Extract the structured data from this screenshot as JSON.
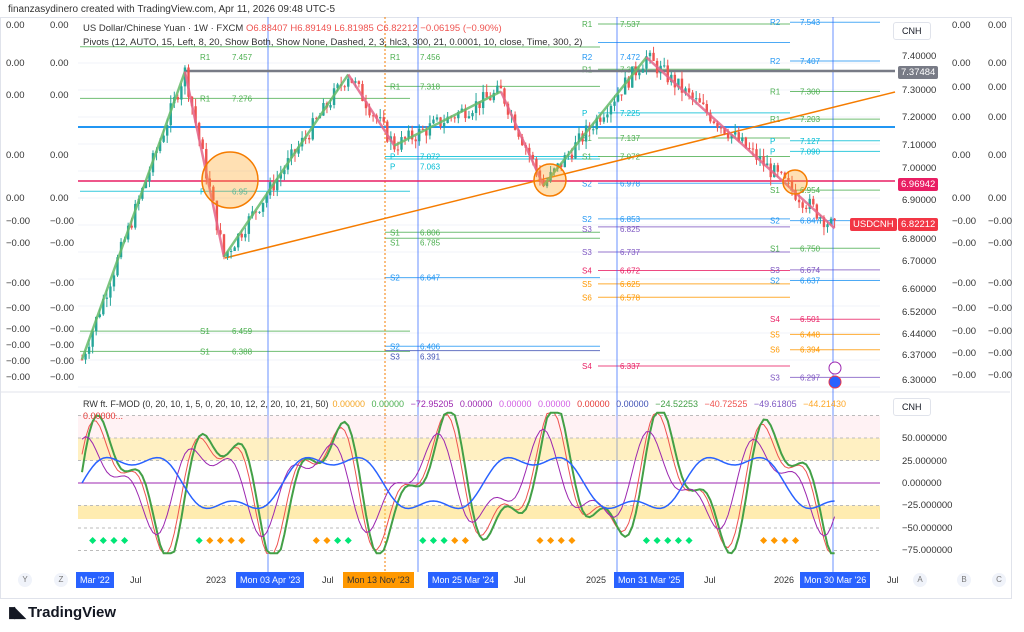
{
  "credit": "finanzasydinero created with TradingView.com, Apr 11, 2026 09:48 UTC-5",
  "symbol": {
    "name": "US Dollar/Chinese Yuan · 1W · FXCM",
    "open": "O6.88407",
    "high": "H6.89149",
    "low": "L6.81985",
    "close": "C6.82212",
    "change": "−0.06195 (−0.90%)"
  },
  "pivots_legend": "Pivots (12, AUTO, 15, Left, 8, 20, Show Both, Show None, Dashed, 2, 3, hlc3, 300, 21, 0.0001, 10, close, Time, 300, 2)",
  "indicator": {
    "name": "RW ft. F-MOD (0, 20, 10, 1, 5, 0, 20, 10, 12, 2, 20, 10, 21, 50)",
    "values": [
      {
        "v": "0.00000",
        "c": "#f5a623"
      },
      {
        "v": "0.00000",
        "c": "#4caf50"
      },
      {
        "v": "−72.95205",
        "c": "#9c27b0"
      },
      {
        "v": "0.00000",
        "c": "#9c27b0"
      },
      {
        "v": "0.00000",
        "c": "#d05ce3"
      },
      {
        "v": "0.00000",
        "c": "#d05ce3"
      },
      {
        "v": "0.00000",
        "c": "#e53935"
      },
      {
        "v": "0.00000",
        "c": "#3f51b5"
      },
      {
        "v": "−24.52253",
        "c": "#43a047"
      },
      {
        "v": "−40.72525",
        "c": "#ef5350"
      },
      {
        "v": "−49.61805",
        "c": "#7e57c2"
      },
      {
        "v": "−44.21430",
        "c": "#ffa726"
      },
      {
        "v": "0.00000...",
        "c": "#e53935"
      }
    ],
    "axis": [
      "50.000000",
      "25.000000",
      "0.000000",
      "−25.000000",
      "−50.000000",
      "−75.000000"
    ],
    "currency": "CNH"
  },
  "price_axis": {
    "currency": "CNH",
    "ticks": [
      "7.40000",
      "7.30000",
      "7.20000",
      "7.10000",
      "7.00000",
      "6.90000",
      "6.80000",
      "6.70000",
      "6.60000",
      "6.52000",
      "6.44000",
      "6.37000",
      "6.30000"
    ],
    "level_badge": "7.37484",
    "pink_badge": "6.96942",
    "symbol_badge": "USDCNH",
    "last_price": "6.82212"
  },
  "left_scale": {
    "col1": [
      "0.00",
      "0.00",
      "0.00",
      "0.00",
      "0.00",
      "−0.00",
      "−0.00",
      "−0.00",
      "−0.00",
      "−0.00",
      "−0.00",
      "−0.00",
      "−0.00"
    ],
    "col2": [
      "0.00",
      "0.00",
      "0.00",
      "0.00",
      "0.00",
      "−0.00",
      "−0.00",
      "−0.00",
      "−0.00",
      "−0.00",
      "−0.00",
      "−0.00",
      "−0.00"
    ]
  },
  "right_scale": {
    "col1": [
      "0.00",
      "0.00",
      "0.00",
      "0.00",
      "0.00",
      "0.00",
      "−0.00",
      "−0.00",
      "−0.00",
      "−0.00",
      "−0.00",
      "−0.00",
      "−0.00"
    ],
    "col2": [
      "0.00",
      "0.00",
      "0.00",
      "0.00",
      "0.00",
      "0.00",
      "−0.00",
      "−0.00",
      "−0.00",
      "−0.00",
      "−0.00",
      "−0.00",
      "−0.00"
    ]
  },
  "pivots": [
    {
      "g": 1,
      "l": "R1",
      "v": "7.457",
      "p": 7.457,
      "c": "#4caf50"
    },
    {
      "g": 1,
      "l": "R1",
      "v": "7.276",
      "p": 7.276,
      "c": "#4caf50"
    },
    {
      "g": 1,
      "l": "P",
      "v": "6.95",
      "p": 6.95,
      "c": "#00bcd4"
    },
    {
      "g": 1,
      "l": "S1",
      "v": "6.459",
      "p": 6.459,
      "c": "#4caf50"
    },
    {
      "g": 1,
      "l": "S1",
      "v": "6.388",
      "p": 6.388,
      "c": "#4caf50"
    },
    {
      "g": 2,
      "l": "R1",
      "v": "7.456",
      "p": 7.456,
      "c": "#4caf50"
    },
    {
      "g": 2,
      "l": "R1",
      "v": "7.318",
      "p": 7.318,
      "c": "#4caf50"
    },
    {
      "g": 2,
      "l": "P",
      "v": "7.072",
      "p": 7.072,
      "c": "#00bcd4"
    },
    {
      "g": 2,
      "l": "P",
      "v": "7.063",
      "p": 7.063,
      "c": "#00bcd4"
    },
    {
      "g": 2,
      "l": "S1",
      "v": "6.806",
      "p": 6.806,
      "c": "#4caf50"
    },
    {
      "g": 2,
      "l": "S1",
      "v": "6.785",
      "p": 6.785,
      "c": "#4caf50"
    },
    {
      "g": 2,
      "l": "S2",
      "v": "6.647",
      "p": 6.647,
      "c": "#2196f3"
    },
    {
      "g": 2,
      "l": "S2",
      "v": "6.406",
      "p": 6.406,
      "c": "#2196f3"
    },
    {
      "g": 2,
      "l": "S3",
      "v": "6.391",
      "p": 6.391,
      "c": "#3f51b5"
    },
    {
      "g": 3,
      "l": "R1",
      "v": "7.537",
      "p": 7.537,
      "c": "#4caf50"
    },
    {
      "g": 3,
      "l": "R2",
      "v": "7.472",
      "p": 7.472,
      "c": "#2196f3"
    },
    {
      "g": 3,
      "l": "R1",
      "v": "7.378",
      "p": 7.378,
      "c": "#4caf50"
    },
    {
      "g": 3,
      "l": "P",
      "v": "7.225",
      "p": 7.225,
      "c": "#00bcd4"
    },
    {
      "g": 3,
      "l": "S1",
      "v": "7.137",
      "p": 7.137,
      "c": "#4caf50"
    },
    {
      "g": 3,
      "l": "S1",
      "v": "7.072",
      "p": 7.072,
      "c": "#4caf50"
    },
    {
      "g": 3,
      "l": "S2",
      "v": "6.978",
      "p": 6.978,
      "c": "#2196f3"
    },
    {
      "g": 3,
      "l": "S2",
      "v": "6.853",
      "p": 6.853,
      "c": "#2196f3"
    },
    {
      "g": 3,
      "l": "S3",
      "v": "6.825",
      "p": 6.825,
      "c": "#7e57c2"
    },
    {
      "g": 3,
      "l": "S3",
      "v": "6.737",
      "p": 6.737,
      "c": "#7e57c2"
    },
    {
      "g": 3,
      "l": "S4",
      "v": "6.672",
      "p": 6.672,
      "c": "#e91e63"
    },
    {
      "g": 3,
      "l": "S5",
      "v": "6.625",
      "p": 6.625,
      "c": "#ff9800"
    },
    {
      "g": 3,
      "l": "S6",
      "v": "6.578",
      "p": 6.578,
      "c": "#ff9800"
    },
    {
      "g": 3,
      "l": "S4",
      "v": "6.337",
      "p": 6.337,
      "c": "#e91e63"
    },
    {
      "g": 4,
      "l": "R2",
      "v": "7.543",
      "p": 7.543,
      "c": "#2196f3"
    },
    {
      "g": 4,
      "l": "R2",
      "v": "7.407",
      "p": 7.407,
      "c": "#2196f3"
    },
    {
      "g": 4,
      "l": "R1",
      "v": "7.300",
      "p": 7.3,
      "c": "#4caf50"
    },
    {
      "g": 4,
      "l": "R1",
      "v": "7.203",
      "p": 7.203,
      "c": "#4caf50"
    },
    {
      "g": 4,
      "l": "P",
      "v": "7.127",
      "p": 7.127,
      "c": "#00bcd4"
    },
    {
      "g": 4,
      "l": "P",
      "v": "7.090",
      "p": 7.09,
      "c": "#00bcd4"
    },
    {
      "g": 4,
      "l": "S1",
      "v": "6.954",
      "p": 6.954,
      "c": "#4caf50"
    },
    {
      "g": 4,
      "l": "S2",
      "v": "6.847",
      "p": 6.847,
      "c": "#2196f3"
    },
    {
      "g": 4,
      "l": "S1",
      "v": "6.750",
      "p": 6.75,
      "c": "#4caf50"
    },
    {
      "g": 4,
      "l": "S3",
      "v": "6.674",
      "p": 6.674,
      "c": "#7e57c2"
    },
    {
      "g": 4,
      "l": "S2",
      "v": "6.637",
      "p": 6.637,
      "c": "#2196f3"
    },
    {
      "g": 4,
      "l": "S4",
      "v": "6.501",
      "p": 6.501,
      "c": "#e91e63"
    },
    {
      "g": 4,
      "l": "S5",
      "v": "6.448",
      "p": 6.448,
      "c": "#ff9800"
    },
    {
      "g": 4,
      "l": "S6",
      "v": "6.394",
      "p": 6.394,
      "c": "#ff9800"
    },
    {
      "g": 4,
      "l": "S3",
      "v": "6.297",
      "p": 6.297,
      "c": "#7e57c2"
    }
  ],
  "swing_points": [
    {
      "week": 0,
      "price": 6.36
    },
    {
      "week": 29,
      "price": 7.37
    },
    {
      "week": 40,
      "price": 6.72
    },
    {
      "week": 75,
      "price": 7.36
    },
    {
      "week": 88,
      "price": 7.11
    },
    {
      "week": 118,
      "price": 7.3
    },
    {
      "week": 130,
      "price": 6.97
    },
    {
      "week": 159,
      "price": 7.42
    },
    {
      "week": 212,
      "price": 6.82
    }
  ],
  "time_axis": {
    "circles_left": [
      "Y",
      "Z"
    ],
    "circles_right": [
      "A",
      "B",
      "C"
    ],
    "labels": [
      {
        "t": "Mar '22",
        "hl": "blue"
      },
      {
        "t": "Jul",
        "hl": ""
      },
      {
        "t": "2023",
        "hl": ""
      },
      {
        "t": "Mon 03 Apr '23",
        "hl": "blue"
      },
      {
        "t": "Jul",
        "hl": ""
      },
      {
        "t": "Mon 13 Nov '23",
        "hl": "orange"
      },
      {
        "t": "Mon 25 Mar '24",
        "hl": "blue"
      },
      {
        "t": "Jul",
        "hl": ""
      },
      {
        "t": "2025",
        "hl": ""
      },
      {
        "t": "Mon 31 Mar '25",
        "hl": "blue"
      },
      {
        "t": "Jul",
        "hl": ""
      },
      {
        "t": "2026",
        "hl": ""
      },
      {
        "t": "Mon 30 Mar '26",
        "hl": "blue"
      },
      {
        "t": "Jul",
        "hl": ""
      }
    ]
  },
  "logo": "TradingView",
  "colors": {
    "up": "#26a69a",
    "down": "#ef5350",
    "blue_line": "#2196f3",
    "pink_line": "#e91e63",
    "orange": "#f57c00"
  }
}
